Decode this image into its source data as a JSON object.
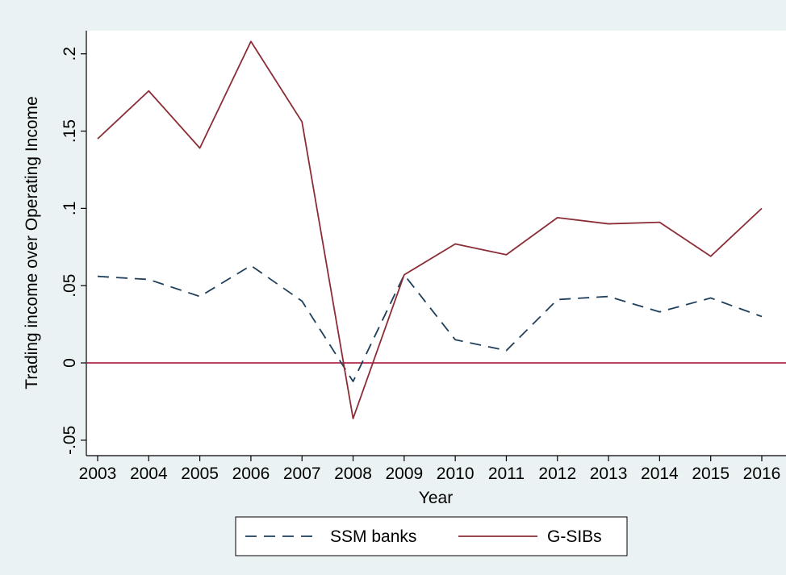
{
  "chart_data": {
    "type": "line",
    "title": "",
    "xlabel": "Year",
    "ylabel": "Trading income over Operating Income",
    "x": [
      2003,
      2004,
      2005,
      2006,
      2007,
      2008,
      2009,
      2010,
      2011,
      2012,
      2013,
      2014,
      2015,
      2016
    ],
    "x_tick_labels": [
      "2003",
      "2004",
      "2005",
      "2006",
      "2007",
      "2008",
      "2009",
      "2010",
      "2011",
      "2012",
      "2013",
      "2014",
      "2015",
      "2016"
    ],
    "y_ticks": [
      -0.05,
      0,
      0.05,
      0.1,
      0.15,
      0.2
    ],
    "y_tick_labels": [
      "-.05",
      "0",
      ".05",
      ".1",
      ".15",
      ".2"
    ],
    "ylim": [
      -0.06,
      0.215
    ],
    "xlim": [
      2003,
      2016
    ],
    "grid": false,
    "legend_position": "bottom",
    "reference_line": {
      "y": 0,
      "color": "#b22a48"
    },
    "series": [
      {
        "name": "SSM banks",
        "style": "dashed",
        "color": "#1f3f5b",
        "values": [
          0.056,
          0.054,
          0.043,
          0.063,
          0.04,
          -0.012,
          0.057,
          0.015,
          0.008,
          0.041,
          0.043,
          0.033,
          0.042,
          0.03
        ]
      },
      {
        "name": "G-SIBs",
        "style": "solid",
        "color": "#8b2d36",
        "values": [
          0.145,
          0.176,
          0.139,
          0.208,
          0.156,
          -0.036,
          0.057,
          0.077,
          0.07,
          0.094,
          0.09,
          0.091,
          0.069,
          0.1
        ]
      }
    ]
  }
}
